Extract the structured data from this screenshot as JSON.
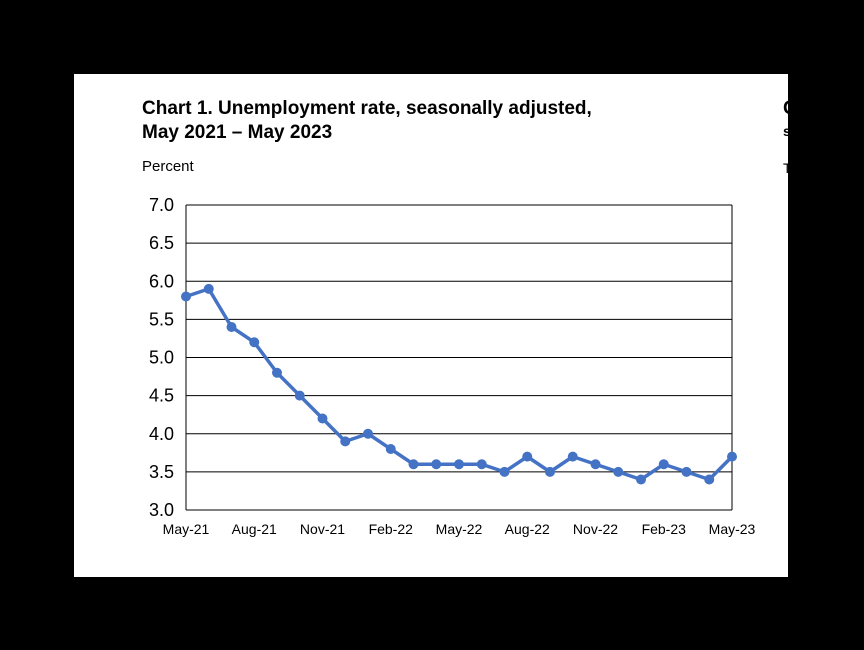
{
  "chart_data": {
    "type": "line",
    "title": "Chart 1. Unemployment rate, seasonally adjusted,",
    "subtitle": "May 2021 – May 2023",
    "ylabel": "Percent",
    "xlabel": "",
    "ylim": [
      3.0,
      7.0
    ],
    "yticks": [
      "3.0",
      "3.5",
      "4.0",
      "4.5",
      "5.0",
      "5.5",
      "6.0",
      "6.5",
      "7.0"
    ],
    "x": [
      "May-21",
      "Jun-21",
      "Jul-21",
      "Aug-21",
      "Sep-21",
      "Oct-21",
      "Nov-21",
      "Dec-21",
      "Jan-22",
      "Feb-22",
      "Mar-22",
      "Apr-22",
      "May-22",
      "Jun-22",
      "Jul-22",
      "Aug-22",
      "Sep-22",
      "Oct-22",
      "Nov-22",
      "Dec-22",
      "Jan-23",
      "Feb-23",
      "Mar-23",
      "Apr-23",
      "May-23"
    ],
    "xtick_labels": [
      "May-21",
      "Aug-21",
      "Nov-21",
      "Feb-22",
      "May-22",
      "Aug-22",
      "Nov-22",
      "Feb-23",
      "May-23"
    ],
    "xtick_every": 3,
    "series": [
      {
        "values": [
          5.8,
          5.9,
          5.4,
          5.2,
          4.8,
          4.5,
          4.2,
          3.9,
          4.0,
          3.8,
          3.6,
          3.6,
          3.6,
          3.6,
          3.5,
          3.7,
          3.5,
          3.7,
          3.6,
          3.5,
          3.4,
          3.6,
          3.5,
          3.4,
          3.7
        ],
        "color": "#4472c4"
      }
    ],
    "grid": true,
    "legend": "none",
    "clipped_text": [
      "C",
      "s",
      "T"
    ]
  }
}
